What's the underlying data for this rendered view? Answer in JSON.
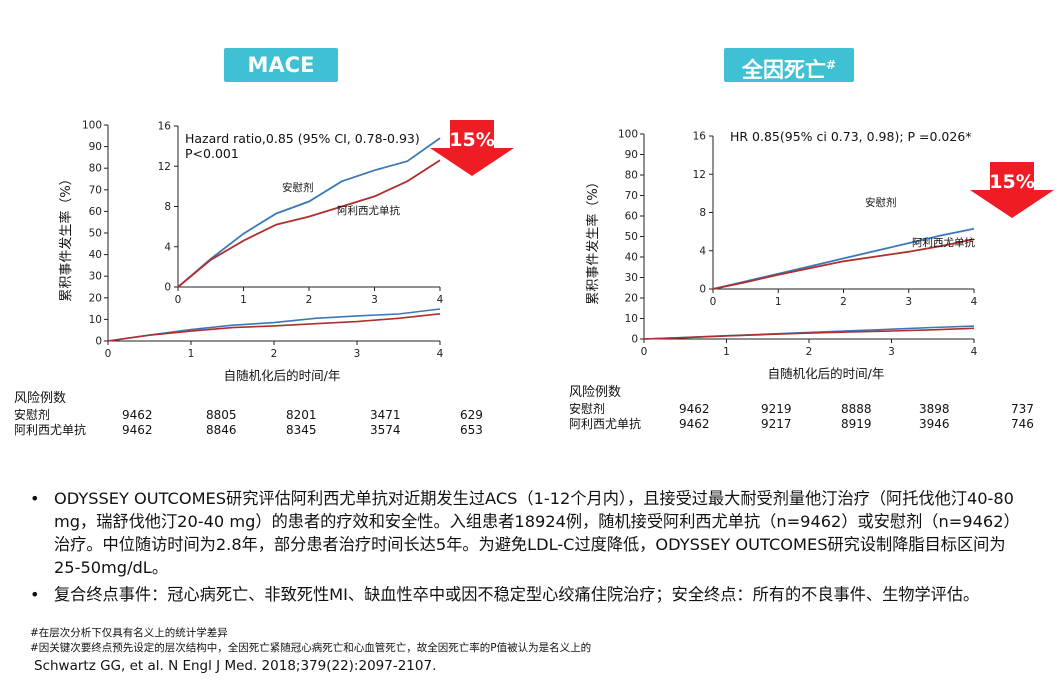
{
  "badges": {
    "left": "MACE",
    "right_main": "全因死亡",
    "right_sup": "#"
  },
  "chart_data": [
    {
      "type": "line",
      "title": "MACE",
      "xlabel": "自随机化后的时间/年",
      "ylabel": "累积事件发生率（%）",
      "x_ticks": [
        "0",
        "1",
        "2",
        "3",
        "4"
      ],
      "y_ticks": [
        "0",
        "10",
        "20",
        "30",
        "40",
        "50",
        "60",
        "70",
        "80",
        "90",
        "100"
      ],
      "xlim": [
        0,
        4
      ],
      "ylim": [
        0,
        100
      ],
      "series": [
        {
          "name": "安慰剂",
          "color": "#3b78b6",
          "x": [
            0,
            0.5,
            1,
            1.5,
            2,
            2.5,
            3,
            3.5,
            4
          ],
          "y": [
            0,
            2.8,
            5.3,
            7.3,
            8.5,
            10.5,
            11.6,
            12.5,
            14.8
          ]
        },
        {
          "name": "阿利西尤单抗",
          "color": "#b02e2e",
          "x": [
            0,
            0.5,
            1,
            1.5,
            2,
            2.5,
            3,
            3.5,
            4
          ],
          "y": [
            0,
            2.7,
            4.6,
            6.2,
            7.0,
            8.0,
            9.0,
            10.5,
            12.6
          ]
        }
      ],
      "inset": {
        "xlim": [
          0,
          4
        ],
        "ylim": [
          0,
          16
        ],
        "x_ticks": [
          "0",
          "1",
          "2",
          "3",
          "4"
        ],
        "y_ticks": [
          "0",
          "4",
          "8",
          "12",
          "16"
        ],
        "annotation": [
          "Hazard ratio,0.85 (95% CI, 0.78-0.93)",
          "P<0.001"
        ],
        "label_placebo": "安慰剂",
        "label_drug": "阿利西尤单抗"
      },
      "arrow_label": "15%"
    },
    {
      "type": "line",
      "title": "全因死亡#",
      "xlabel": "自随机化后的时间/年",
      "ylabel": "累积事件发生率（%）",
      "x_ticks": [
        "0",
        "1",
        "2",
        "3",
        "4"
      ],
      "y_ticks": [
        "0",
        "10",
        "20",
        "30",
        "40",
        "50",
        "60",
        "70",
        "80",
        "90",
        "100"
      ],
      "xlim": [
        0,
        4
      ],
      "ylim": [
        0,
        100
      ],
      "series": [
        {
          "name": "安慰剂",
          "color": "#3b78b6",
          "x": [
            0,
            0.5,
            1,
            1.5,
            2,
            2.5,
            3,
            3.5,
            4
          ],
          "y": [
            0,
            0.8,
            1.6,
            2.4,
            3.2,
            4.0,
            4.8,
            5.6,
            6.3
          ]
        },
        {
          "name": "阿利西尤单抗",
          "color": "#b02e2e",
          "x": [
            0,
            0.5,
            1,
            1.5,
            2,
            2.5,
            3,
            3.5,
            4
          ],
          "y": [
            0,
            0.7,
            1.5,
            2.2,
            2.9,
            3.4,
            3.9,
            4.5,
            5.2
          ]
        }
      ],
      "inset": {
        "xlim": [
          0,
          4
        ],
        "ylim": [
          0,
          16
        ],
        "x_ticks": [
          "0",
          "1",
          "2",
          "3",
          "4"
        ],
        "y_ticks": [
          "0",
          "4",
          "8",
          "12",
          "16"
        ],
        "annotation": [
          "HR 0.85(95% ci 0.73, 0.98); P =0.026*"
        ],
        "label_placebo": "安慰剂",
        "label_drug": "阿利西尤单抗"
      },
      "arrow_label": "15%"
    }
  ],
  "risk_left": {
    "header": "风险例数",
    "rows": [
      {
        "label": "安慰剂",
        "values": [
          "9462",
          "8805",
          "8201",
          "3471",
          "629"
        ]
      },
      {
        "label": "阿利西尤单抗",
        "values": [
          "9462",
          "8846",
          "8345",
          "3574",
          "653"
        ]
      }
    ]
  },
  "risk_right": {
    "header": "风险例数",
    "rows": [
      {
        "label": "安慰剂",
        "values": [
          "9462",
          "9219",
          "8888",
          "3898",
          "737"
        ]
      },
      {
        "label": "阿利西尤单抗",
        "values": [
          "9462",
          "9217",
          "8919",
          "3946",
          "746"
        ]
      }
    ]
  },
  "bullets": [
    "ODYSSEY OUTCOMES研究评估阿利西尤单抗对近期发生过ACS（1-12个月内），且接受过最大耐受剂量他汀治疗（阿托伐他汀40-80 mg，瑞舒伐他汀20-40 mg）的患者的疗效和安全性。入组患者18924例，随机接受阿利西尤单抗（n=9462）或安慰剂（n=9462）治疗。中位随访时间为2.8年，部分患者治疗时间长达5年。为避免LDL-C过度降低，ODYSSEY OUTCOMES研究设制降脂目标区间为25-50mg/dL。",
    "复合终点事件：冠心病死亡、非致死性MI、缺血性卒中或因不稳定型心绞痛住院治疗；安全终点：所有的不良事件、生物学评估。"
  ],
  "bullet_marker": "•",
  "notes": {
    "note1": "#在层次分析下仅具有名义上的统计学差异",
    "note2": "#因关键次要终点预先设定的层次结构中，全因死亡紧随冠心病死亡和心血管死亡，故全因死亡率的P值被认为是名义上的",
    "citation": "Schwartz GG, et al. N Engl J Med. 2018;379(22):2097-2107."
  }
}
